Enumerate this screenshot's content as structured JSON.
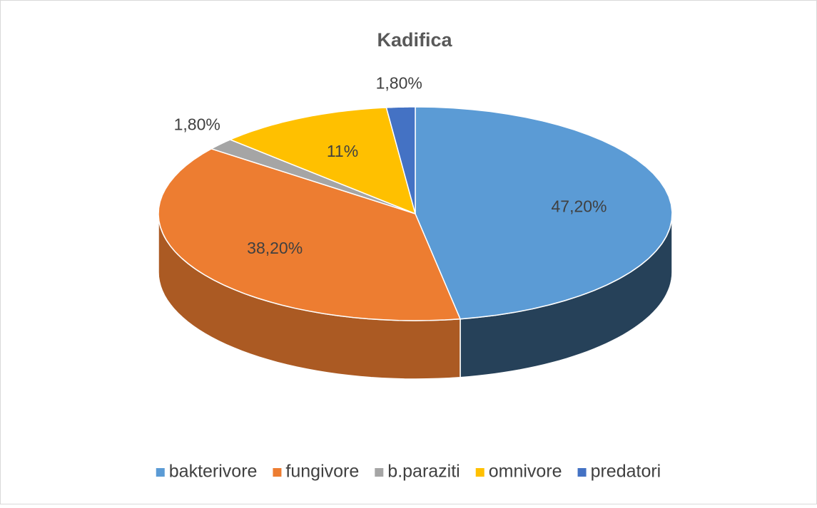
{
  "chart_data": {
    "type": "pie3d",
    "title": "Kadifica",
    "categories": [
      "bakterivore",
      "fungivore",
      "b.paraziti",
      "omnivore",
      "predatori"
    ],
    "values": [
      47.2,
      38.2,
      1.8,
      11,
      1.8
    ],
    "value_labels": [
      "47,20%",
      "38,20%",
      "1,80%",
      "11%",
      "1,80%"
    ],
    "colors": [
      "#5b9bd5",
      "#ed7d31",
      "#a5a5a5",
      "#ffc000",
      "#4472c4"
    ],
    "legend": "bottom"
  }
}
